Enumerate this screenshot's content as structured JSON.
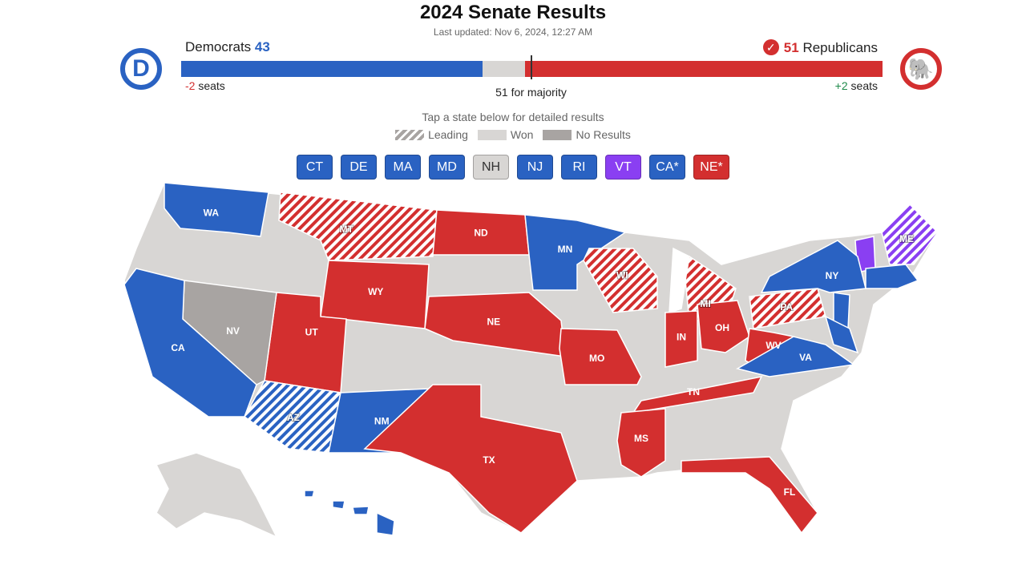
{
  "header": {
    "title": "2024 Senate Results",
    "updated": "Last updated: Nov 6, 2024, 12:27 AM"
  },
  "colors": {
    "dem": "#2a62c2",
    "rep": "#d32f2f",
    "ind": "#8a3ff2",
    "won_gray": "#d8d6d4",
    "no_results": "#a8a4a2"
  },
  "dem": {
    "name": "Democrats",
    "count": "43",
    "change_num": "-2",
    "change_label": "seats",
    "icon": "democratic-d-logo",
    "logo_letter": "D",
    "seats": 43
  },
  "rep": {
    "name": "Republicans",
    "count": "51",
    "change_num": "+2",
    "change_label": "seats",
    "icon": "republican-elephant-logo",
    "logo_glyph": "🐘",
    "check": "✓",
    "seats": 51
  },
  "majority": "51 for majority",
  "tap_hint": "Tap a state below for detailed results",
  "legend": [
    {
      "label": "Leading",
      "style": "hatched"
    },
    {
      "label": "Won",
      "style": "light-gray"
    },
    {
      "label": "No Results",
      "style": "dark-gray"
    }
  ],
  "chips": [
    {
      "label": "CT",
      "party": "dem"
    },
    {
      "label": "DE",
      "party": "dem"
    },
    {
      "label": "MA",
      "party": "dem"
    },
    {
      "label": "MD",
      "party": "dem"
    },
    {
      "label": "NH",
      "party": "none"
    },
    {
      "label": "NJ",
      "party": "dem"
    },
    {
      "label": "RI",
      "party": "dem"
    },
    {
      "label": "VT",
      "party": "ind"
    },
    {
      "label": "CA*",
      "party": "dem"
    },
    {
      "label": "NE*",
      "party": "rep"
    }
  ],
  "states": [
    {
      "abbr": "WA",
      "party": "dem",
      "status": "won"
    },
    {
      "abbr": "MT",
      "party": "rep",
      "status": "leading"
    },
    {
      "abbr": "ND",
      "party": "rep",
      "status": "won"
    },
    {
      "abbr": "MN",
      "party": "dem",
      "status": "won"
    },
    {
      "abbr": "WY",
      "party": "rep",
      "status": "won"
    },
    {
      "abbr": "UT",
      "party": "rep",
      "status": "won"
    },
    {
      "abbr": "NV",
      "party": "none",
      "status": "no-results"
    },
    {
      "abbr": "CA",
      "party": "dem",
      "status": "won"
    },
    {
      "abbr": "AZ",
      "party": "dem",
      "status": "leading"
    },
    {
      "abbr": "NM",
      "party": "dem",
      "status": "won"
    },
    {
      "abbr": "NE",
      "party": "rep",
      "status": "won"
    },
    {
      "abbr": "MO",
      "party": "rep",
      "status": "won"
    },
    {
      "abbr": "WI",
      "party": "rep",
      "status": "leading"
    },
    {
      "abbr": "MI",
      "party": "rep",
      "status": "leading"
    },
    {
      "abbr": "IN",
      "party": "rep",
      "status": "won"
    },
    {
      "abbr": "OH",
      "party": "rep",
      "status": "won"
    },
    {
      "abbr": "WV",
      "party": "rep",
      "status": "won"
    },
    {
      "abbr": "VA",
      "party": "dem",
      "status": "won"
    },
    {
      "abbr": "PA",
      "party": "rep",
      "status": "leading"
    },
    {
      "abbr": "NY",
      "party": "dem",
      "status": "won"
    },
    {
      "abbr": "TN",
      "party": "rep",
      "status": "won"
    },
    {
      "abbr": "MS",
      "party": "rep",
      "status": "won"
    },
    {
      "abbr": "TX",
      "party": "rep",
      "status": "won"
    },
    {
      "abbr": "FL",
      "party": "rep",
      "status": "won"
    },
    {
      "abbr": "ME",
      "party": "ind",
      "status": "leading"
    },
    {
      "abbr": "HI",
      "party": "dem",
      "status": "won"
    }
  ]
}
